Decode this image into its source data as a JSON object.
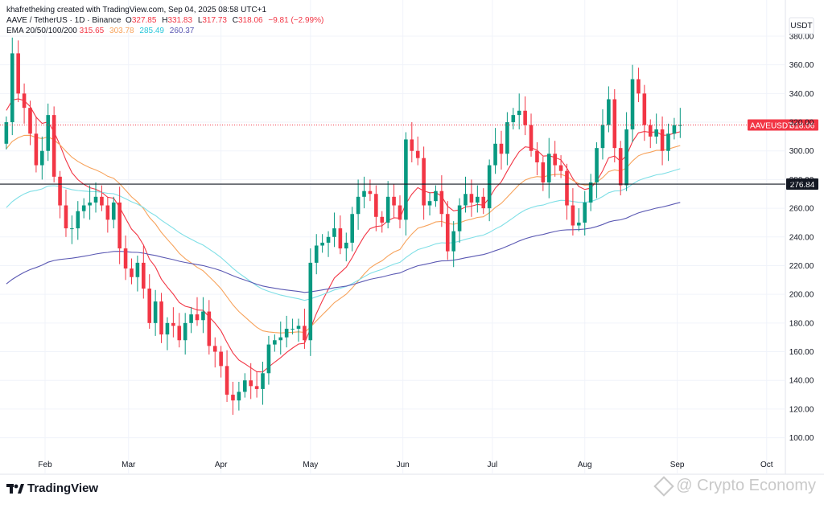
{
  "header": {
    "created": "khafretheking created with TradingView.com, Sep 04, 2025 08:58 UTC+1",
    "symbol": "AAVE / TetherUS · 1D · Binance",
    "open_label": "O",
    "open": "327.85",
    "high_label": "H",
    "high": "331.83",
    "low_label": "L",
    "low": "317.73",
    "close_label": "C",
    "close": "318.06",
    "change": "−9.81 (−2.99%)",
    "ema_label": "EMA 20/50/100/200",
    "ema20": "315.65",
    "ema50": "303.78",
    "ema100": "285.49",
    "ema200": "260.37"
  },
  "currency_label": "USDT",
  "price_tag": {
    "label": "AAVEUSDT",
    "value": "318.06"
  },
  "hline_tag": {
    "value": "276.84"
  },
  "footer": {
    "brand": "TradingView"
  },
  "watermark": {
    "text": "@ Crypto Economy"
  },
  "colors": {
    "up": "#089981",
    "down": "#f23645",
    "ema20": "#f23645",
    "ema50": "#f7a35c",
    "ema100": "#7fdfe6",
    "ema200": "#5b59b3",
    "hline": "#131722",
    "price_line": "#f23645",
    "grid": "#f0f3fa"
  },
  "chart_data": {
    "type": "candlestick",
    "y_ticks": [
      "100.00",
      "120.00",
      "140.00",
      "160.00",
      "180.00",
      "200.00",
      "220.00",
      "240.00",
      "260.00",
      "280.00",
      "300.00",
      "320.00",
      "340.00",
      "360.00",
      "380.00"
    ],
    "ylim": [
      88,
      394
    ],
    "x_tick_labels": [
      "Feb",
      "Mar",
      "Apr",
      "May",
      "Jun",
      "Jul",
      "Aug",
      "Sep",
      "Oct"
    ],
    "x_tick_days": [
      31,
      59,
      90,
      120,
      151,
      181,
      212,
      243,
      273
    ],
    "xlim_days": [
      17.5,
      279
    ],
    "close_series_days": [
      18,
      20,
      22,
      24,
      26,
      28,
      30,
      32,
      34,
      36,
      38,
      40,
      42,
      44,
      46,
      48,
      50,
      52,
      54,
      56,
      58,
      60,
      62,
      64,
      66,
      68,
      70,
      72,
      74,
      76,
      78,
      80,
      82,
      84,
      86,
      88,
      90,
      92,
      94,
      96,
      98,
      100,
      102,
      104,
      106,
      108,
      110,
      112,
      114,
      116,
      118,
      120,
      122,
      124,
      126,
      128,
      130,
      132,
      134,
      136,
      138,
      140,
      142,
      144,
      146,
      148,
      150,
      152,
      154,
      156,
      158,
      160,
      162,
      164,
      166,
      168,
      170,
      172,
      174,
      176,
      178,
      180,
      182,
      184,
      186,
      188,
      190,
      192,
      194,
      196,
      198,
      200,
      202,
      204,
      206,
      208,
      210,
      212,
      214,
      216,
      218,
      220,
      222,
      224,
      226,
      228,
      230,
      232,
      234,
      236,
      238,
      240,
      242,
      244
    ],
    "closes": [
      320,
      368,
      340,
      330,
      312,
      290,
      300,
      325,
      282,
      262,
      246,
      246,
      258,
      262,
      264,
      268,
      262,
      252,
      264,
      232,
      218,
      212,
      222,
      204,
      180,
      195,
      172,
      180,
      178,
      168,
      180,
      186,
      182,
      188,
      164,
      160,
      150,
      130,
      126,
      132,
      140,
      136,
      134,
      145,
      165,
      168,
      170,
      176,
      176,
      178,
      168,
      222,
      234,
      236,
      240,
      246,
      232,
      236,
      256,
      268,
      272,
      270,
      254,
      250,
      268,
      262,
      252,
      308,
      300,
      295,
      262,
      265,
      272,
      256,
      230,
      244,
      262,
      270,
      264,
      268,
      260,
      290,
      305,
      298,
      320,
      325,
      328,
      318,
      300,
      292,
      278,
      298,
      290,
      286,
      262,
      248,
      250,
      264,
      278,
      302,
      318,
      336,
      302,
      276,
      315,
      350,
      340,
      318,
      310,
      315,
      300,
      312,
      318,
      318
    ],
    "ema": [
      {
        "name": "EMA 20",
        "value": 315.65
      },
      {
        "name": "EMA 50",
        "value": 303.78
      },
      {
        "name": "EMA 100",
        "value": 285.49
      },
      {
        "name": "EMA 200",
        "value": 260.37
      }
    ],
    "hline": 276.84,
    "last_close": 318.06,
    "peaks": {
      "high": 386,
      "low": 114
    }
  }
}
